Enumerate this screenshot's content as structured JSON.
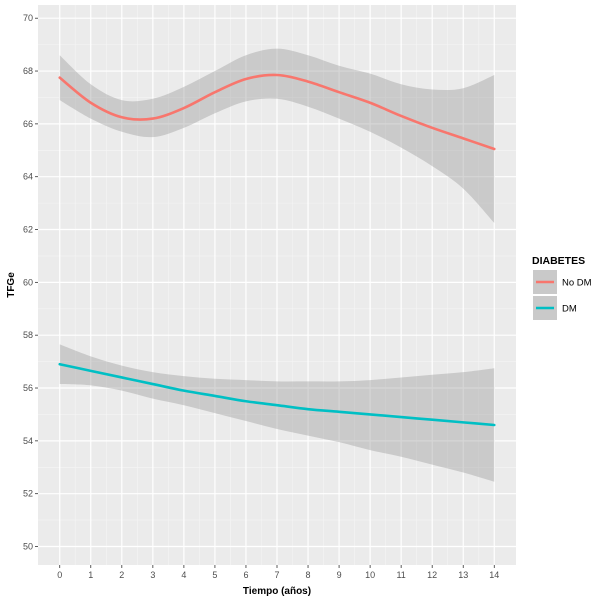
{
  "chart_data": {
    "type": "line",
    "title": "",
    "xlabel": "Tiempo (años)",
    "ylabel": "TFGe",
    "xlim": [
      -0.7,
      14.7
    ],
    "ylim": [
      49.3,
      70.5
    ],
    "x_ticks": [
      0,
      1,
      2,
      3,
      4,
      5,
      6,
      7,
      8,
      9,
      10,
      11,
      12,
      13,
      14
    ],
    "y_ticks": [
      50,
      52,
      54,
      56,
      58,
      60,
      62,
      64,
      66,
      68,
      70
    ],
    "grid": true,
    "legend": {
      "title": "DIABETES",
      "placement": "right"
    },
    "x": [
      0,
      1,
      2,
      3,
      4,
      5,
      6,
      7,
      8,
      9,
      10,
      11,
      12,
      13,
      14
    ],
    "series": [
      {
        "name": "No DM",
        "color": "#f8766d",
        "values": [
          67.75,
          66.8,
          66.25,
          66.2,
          66.6,
          67.2,
          67.7,
          67.85,
          67.6,
          67.2,
          66.8,
          66.3,
          65.85,
          65.45,
          65.05
        ],
        "ci_upper": [
          68.6,
          67.5,
          66.9,
          66.95,
          67.4,
          68.0,
          68.6,
          68.85,
          68.6,
          68.2,
          67.9,
          67.5,
          67.3,
          67.35,
          67.85
        ],
        "ci_lower": [
          66.9,
          66.2,
          65.7,
          65.5,
          65.85,
          66.4,
          66.85,
          66.95,
          66.65,
          66.2,
          65.7,
          65.1,
          64.4,
          63.55,
          62.25
        ]
      },
      {
        "name": "DM",
        "color": "#00bfc4",
        "values": [
          56.9,
          56.65,
          56.4,
          56.15,
          55.9,
          55.7,
          55.5,
          55.35,
          55.2,
          55.1,
          55.0,
          54.9,
          54.8,
          54.7,
          54.6
        ],
        "ci_upper": [
          57.65,
          57.2,
          56.85,
          56.6,
          56.45,
          56.35,
          56.3,
          56.25,
          56.25,
          56.25,
          56.3,
          56.4,
          56.5,
          56.6,
          56.75
        ],
        "ci_lower": [
          56.15,
          56.1,
          55.9,
          55.6,
          55.35,
          55.05,
          54.75,
          54.45,
          54.2,
          53.95,
          53.65,
          53.4,
          53.1,
          52.8,
          52.45
        ]
      }
    ]
  }
}
